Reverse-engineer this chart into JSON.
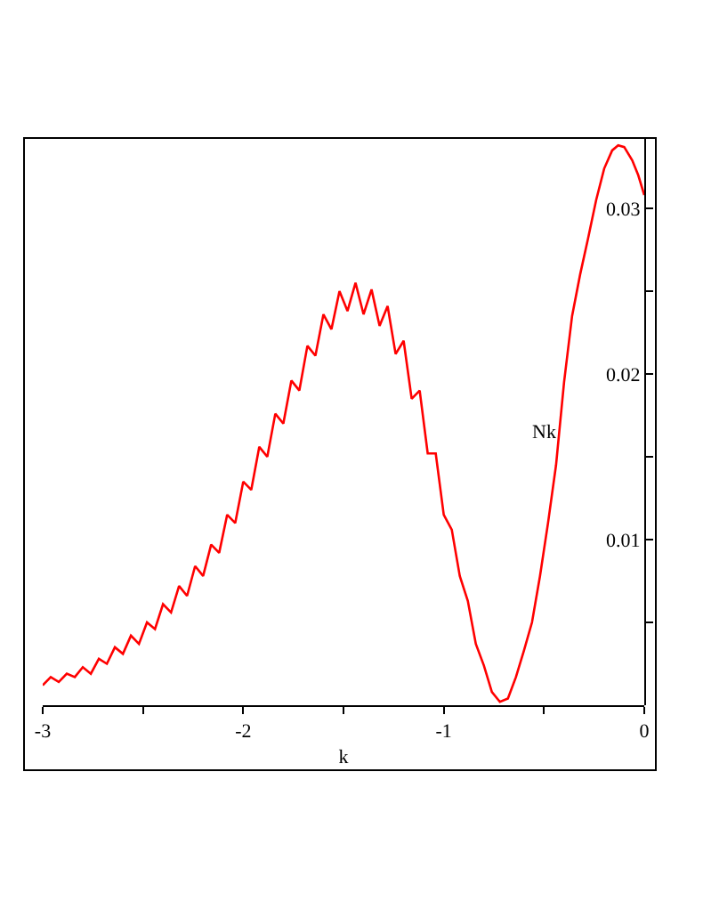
{
  "chart_data": {
    "type": "line",
    "xlabel": "k",
    "ylabel": "Nk",
    "x": [
      -3.0,
      -2.96,
      -2.92,
      -2.88,
      -2.84,
      -2.8,
      -2.76,
      -2.72,
      -2.68,
      -2.64,
      -2.6,
      -2.56,
      -2.52,
      -2.48,
      -2.44,
      -2.4,
      -2.36,
      -2.32,
      -2.28,
      -2.24,
      -2.2,
      -2.16,
      -2.12,
      -2.08,
      -2.04,
      -2.0,
      -1.96,
      -1.92,
      -1.88,
      -1.84,
      -1.8,
      -1.76,
      -1.72,
      -1.68,
      -1.64,
      -1.6,
      -1.56,
      -1.52,
      -1.48,
      -1.44,
      -1.4,
      -1.36,
      -1.32,
      -1.28,
      -1.24,
      -1.2,
      -1.16,
      -1.12,
      -1.08,
      -1.04,
      -1.0,
      -0.96,
      -0.92,
      -0.88,
      -0.84,
      -0.8,
      -0.76,
      -0.72,
      -0.68,
      -0.64,
      -0.6,
      -0.56,
      -0.52,
      -0.48,
      -0.44,
      -0.4,
      -0.36,
      -0.32,
      -0.28,
      -0.24,
      -0.2,
      -0.16,
      -0.13,
      -0.1,
      -0.06,
      -0.03,
      0
    ],
    "series": [
      {
        "color": "#ff0000",
        "values": [
          0.0012,
          0.0017,
          0.0014,
          0.0019,
          0.0017,
          0.0023,
          0.0019,
          0.0028,
          0.0025,
          0.0035,
          0.0031,
          0.0042,
          0.0037,
          0.005,
          0.0046,
          0.0061,
          0.0056,
          0.0072,
          0.0066,
          0.0084,
          0.0078,
          0.0097,
          0.0092,
          0.0115,
          0.011,
          0.0135,
          0.013,
          0.0156,
          0.015,
          0.0176,
          0.017,
          0.0196,
          0.019,
          0.0217,
          0.0211,
          0.0236,
          0.0227,
          0.025,
          0.0238,
          0.0255,
          0.0236,
          0.0251,
          0.0229,
          0.0241,
          0.0212,
          0.022,
          0.0185,
          0.019,
          0.0152,
          0.0152,
          0.0115,
          0.0106,
          0.0078,
          0.0063,
          0.0037,
          0.0024,
          0.0008,
          0.0002,
          0.0004,
          0.0017,
          0.0033,
          0.005,
          0.0078,
          0.011,
          0.0145,
          0.0195,
          0.0235,
          0.026,
          0.0282,
          0.0305,
          0.0324,
          0.0335,
          0.0338,
          0.0337,
          0.0329,
          0.032,
          0.0308
        ]
      }
    ],
    "xlim": [
      -3,
      0
    ],
    "xticks": [
      -3,
      {
        "value": -2.5,
        "label": null
      },
      -2,
      {
        "value": -1.5,
        "label": null
      },
      -1,
      {
        "value": -0.5,
        "label": null
      },
      0
    ],
    "ylim": [
      0,
      0.0343
    ],
    "yticks": [
      {
        "value": 0.005,
        "label": null
      },
      0.01,
      {
        "value": 0.015,
        "label": null
      },
      0.02,
      {
        "value": 0.025,
        "label": null
      },
      0.03
    ],
    "grid": false,
    "marker": "none",
    "line_style": "solid"
  }
}
